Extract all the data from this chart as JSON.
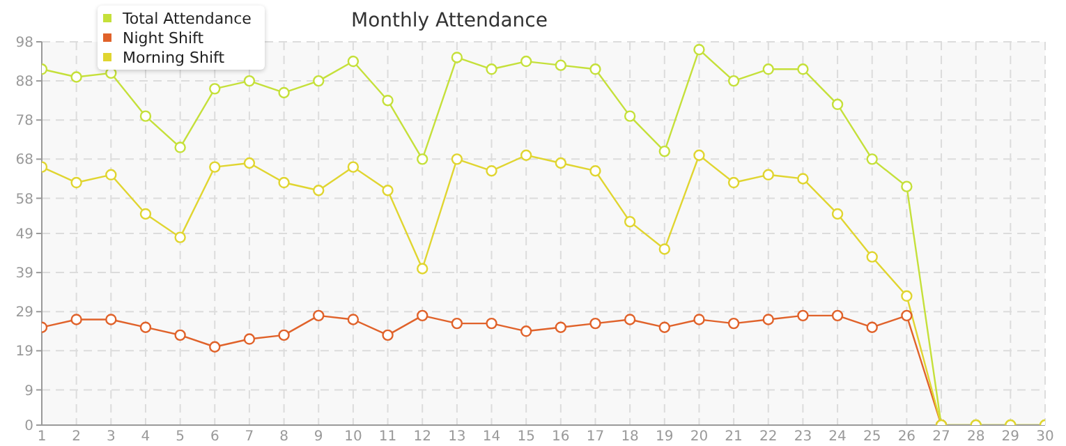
{
  "chart_data": {
    "type": "line",
    "title": "Monthly Attendance",
    "x": [
      1,
      2,
      3,
      4,
      5,
      6,
      7,
      8,
      9,
      10,
      11,
      12,
      13,
      14,
      15,
      16,
      17,
      18,
      19,
      20,
      21,
      22,
      23,
      24,
      25,
      26,
      27,
      28,
      29,
      30
    ],
    "series": [
      {
        "name": "Total Attendance",
        "color": "#c5e03a",
        "values": [
          91,
          89,
          90,
          79,
          71,
          86,
          88,
          85,
          88,
          93,
          83,
          68,
          94,
          91,
          93,
          92,
          91,
          79,
          70,
          96,
          88,
          91,
          91,
          82,
          68,
          61,
          0,
          0,
          0,
          0
        ]
      },
      {
        "name": "Night Shift",
        "color": "#e0622a",
        "values": [
          25,
          27,
          27,
          25,
          23,
          20,
          22,
          23,
          28,
          27,
          23,
          28,
          26,
          26,
          24,
          25,
          26,
          27,
          25,
          27,
          26,
          27,
          28,
          28,
          25,
          28,
          0,
          null,
          null,
          null
        ]
      },
      {
        "name": "Morning Shift",
        "color": "#e0d530",
        "values": [
          66,
          62,
          64,
          54,
          48,
          66,
          67,
          62,
          60,
          66,
          60,
          40,
          68,
          65,
          69,
          67,
          65,
          52,
          45,
          69,
          62,
          64,
          63,
          54,
          43,
          33,
          0,
          0,
          0,
          0
        ]
      }
    ],
    "xlim": [
      1,
      30
    ],
    "xticks": [
      1,
      2,
      3,
      4,
      5,
      6,
      7,
      8,
      9,
      10,
      11,
      12,
      13,
      14,
      15,
      16,
      17,
      18,
      19,
      20,
      21,
      22,
      23,
      24,
      25,
      26,
      27,
      28,
      29,
      30
    ],
    "ylim": [
      0,
      98
    ],
    "yticks": [
      0,
      9,
      19,
      29,
      39,
      49,
      58,
      68,
      78,
      88,
      98
    ],
    "grid": true,
    "legend": "top left",
    "marker": "circle",
    "line_style": "solid"
  }
}
